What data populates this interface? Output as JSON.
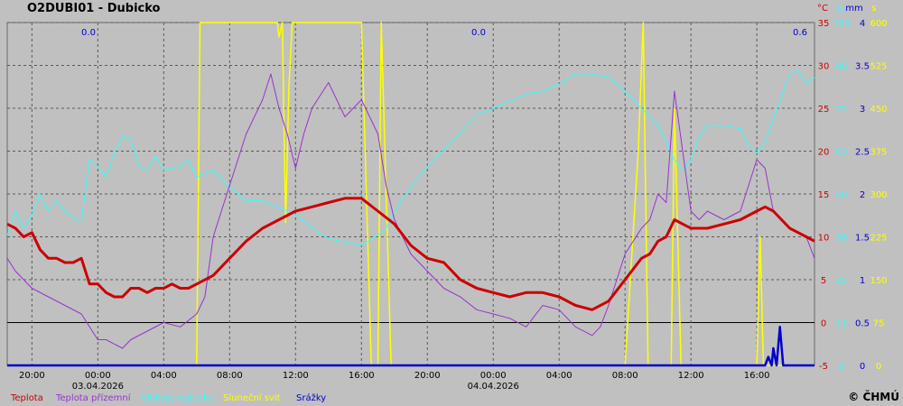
{
  "title": "O2DUBI01 - Dubicko",
  "copyright": "© ČHMÚ",
  "colors": {
    "background": "#c0c0c0",
    "grid": "#5a5a5a",
    "temperature": "#cc0000",
    "ground_temperature": "#9933cc",
    "humidity": "#33ffff",
    "sunshine": "#ffff00",
    "precipitation": "#0000cc",
    "zero_line": "#000000"
  },
  "chart_data": {
    "type": "line",
    "title": "O2DUBI01 - Dubicko",
    "x_ticks": [
      "20:00",
      "00:00",
      "04:00",
      "08:00",
      "12:00",
      "16:00",
      "20:00",
      "00:00",
      "04:00",
      "08:00",
      "12:00",
      "16:00"
    ],
    "date_labels": [
      {
        "at": "00:00",
        "text": "03.04.2026"
      },
      {
        "at": "00:00",
        "text": "04.04.2026"
      }
    ],
    "xlim_hours": [
      -5.5,
      43.5
    ],
    "grid": true,
    "axes": [
      {
        "unit": "°C",
        "color": "#cc0000",
        "ticks": [
          "35",
          "30",
          "25",
          "20",
          "15",
          "10",
          "5",
          "0",
          "-5"
        ]
      },
      {
        "unit": "%",
        "color": "#33ffff",
        "ticks": [
          "100",
          "88",
          "75",
          "63",
          "50",
          "38",
          "25",
          "13",
          "0"
        ]
      },
      {
        "unit": "mm",
        "color": "#0000cc",
        "ticks": [
          "4",
          "3.5",
          "3",
          "2.5",
          "2",
          "1.5",
          "1",
          "0.5",
          "0"
        ]
      },
      {
        "unit": "s",
        "color": "#ffff00",
        "ticks": [
          "600",
          "525",
          "450",
          "375",
          "300",
          "225",
          "150",
          "75",
          "0"
        ]
      }
    ],
    "daily_precip_totals": [
      "0.0",
      "0.0",
      "0.6"
    ],
    "legend": [
      "Teplota",
      "Teplota přízemní",
      "Vlhkost vzduchu",
      "Sluneční svit",
      "Srážky"
    ],
    "legend_position": "bottom",
    "series": [
      {
        "name": "Teplota",
        "color": "#cc0000",
        "axis": "°C",
        "points": [
          [
            -5.5,
            11.5
          ],
          [
            -5,
            11
          ],
          [
            -4.5,
            10
          ],
          [
            -4,
            10.5
          ],
          [
            -3.5,
            8.5
          ],
          [
            -3,
            7.5
          ],
          [
            -2.5,
            7.5
          ],
          [
            -2,
            7
          ],
          [
            -1.5,
            7
          ],
          [
            -1,
            7.5
          ],
          [
            -0.5,
            4.5
          ],
          [
            0,
            4.5
          ],
          [
            0.5,
            3.5
          ],
          [
            1,
            3
          ],
          [
            1.5,
            3
          ],
          [
            2,
            4
          ],
          [
            2.5,
            4
          ],
          [
            3,
            3.5
          ],
          [
            3.5,
            4
          ],
          [
            4,
            4
          ],
          [
            4.5,
            4.5
          ],
          [
            5,
            4
          ],
          [
            5.5,
            4
          ],
          [
            6,
            4.5
          ],
          [
            7,
            5.5
          ],
          [
            8,
            7.5
          ],
          [
            9,
            9.5
          ],
          [
            10,
            11
          ],
          [
            11,
            12
          ],
          [
            12,
            13
          ],
          [
            13,
            13.5
          ],
          [
            14,
            14
          ],
          [
            15,
            14.5
          ],
          [
            16,
            14.5
          ],
          [
            17,
            13
          ],
          [
            18,
            11.5
          ],
          [
            19,
            9
          ],
          [
            20,
            7.5
          ],
          [
            21,
            7
          ],
          [
            22,
            5
          ],
          [
            23,
            4
          ],
          [
            24,
            3.5
          ],
          [
            25,
            3
          ],
          [
            26,
            3.5
          ],
          [
            27,
            3.5
          ],
          [
            28,
            3
          ],
          [
            29,
            2
          ],
          [
            30,
            1.5
          ],
          [
            31,
            2.5
          ],
          [
            32,
            5
          ],
          [
            33,
            7.5
          ],
          [
            33.5,
            8
          ],
          [
            34,
            9.5
          ],
          [
            34.5,
            10
          ],
          [
            35,
            12
          ],
          [
            35.5,
            11.5
          ],
          [
            36,
            11
          ],
          [
            37,
            11
          ],
          [
            38,
            11.5
          ],
          [
            39,
            12
          ],
          [
            40,
            13
          ],
          [
            40.5,
            13.5
          ],
          [
            41,
            13
          ],
          [
            42,
            11
          ],
          [
            43,
            10
          ],
          [
            43.5,
            9.5
          ]
        ]
      },
      {
        "name": "Teplota přízemní",
        "color": "#9933cc",
        "axis": "°C",
        "points": [
          [
            -5.5,
            7.5
          ],
          [
            -5,
            6
          ],
          [
            -4,
            4
          ],
          [
            -3,
            3
          ],
          [
            -2,
            2
          ],
          [
            -1,
            1
          ],
          [
            0,
            -2
          ],
          [
            0.5,
            -2
          ],
          [
            1,
            -2.5
          ],
          [
            1.5,
            -3
          ],
          [
            2,
            -2
          ],
          [
            3,
            -1
          ],
          [
            4,
            0
          ],
          [
            5,
            -0.5
          ],
          [
            6,
            1
          ],
          [
            6.5,
            3
          ],
          [
            7,
            10
          ],
          [
            8,
            16
          ],
          [
            9,
            22
          ],
          [
            10,
            26
          ],
          [
            10.5,
            29
          ],
          [
            11,
            25
          ],
          [
            11.5,
            22
          ],
          [
            12,
            18
          ],
          [
            12.5,
            22
          ],
          [
            13,
            25
          ],
          [
            14,
            28
          ],
          [
            14.5,
            26
          ],
          [
            15,
            24
          ],
          [
            16,
            26
          ],
          [
            17,
            22
          ],
          [
            17.5,
            16
          ],
          [
            18,
            12
          ],
          [
            18.5,
            10
          ],
          [
            19,
            8
          ],
          [
            20,
            6
          ],
          [
            21,
            4
          ],
          [
            22,
            3
          ],
          [
            23,
            1.5
          ],
          [
            24,
            1
          ],
          [
            25,
            0.5
          ],
          [
            26,
            -0.5
          ],
          [
            27,
            2
          ],
          [
            28,
            1.5
          ],
          [
            29,
            -0.5
          ],
          [
            30,
            -1.5
          ],
          [
            30.5,
            -0.5
          ],
          [
            31,
            2
          ],
          [
            32,
            8
          ],
          [
            33,
            11
          ],
          [
            33.5,
            12
          ],
          [
            34,
            15
          ],
          [
            34.5,
            14
          ],
          [
            35,
            27
          ],
          [
            35.5,
            20
          ],
          [
            36,
            13
          ],
          [
            36.5,
            12
          ],
          [
            37,
            13
          ],
          [
            38,
            12
          ],
          [
            39,
            13
          ],
          [
            40,
            19
          ],
          [
            40.5,
            18
          ],
          [
            41,
            13
          ],
          [
            42,
            11
          ],
          [
            43,
            10
          ],
          [
            43.5,
            7.5
          ]
        ]
      },
      {
        "name": "Vlhkost vzduchu",
        "color": "#33ffff",
        "axis": "%",
        "points": [
          [
            -5.5,
            38
          ],
          [
            -5,
            45
          ],
          [
            -4.5,
            40
          ],
          [
            -4,
            44
          ],
          [
            -3.5,
            50
          ],
          [
            -3,
            45
          ],
          [
            -2.5,
            48
          ],
          [
            -2,
            45
          ],
          [
            -1.5,
            43
          ],
          [
            -1,
            42
          ],
          [
            -0.5,
            60
          ],
          [
            0,
            58
          ],
          [
            0.5,
            55
          ],
          [
            1,
            62
          ],
          [
            1.5,
            67
          ],
          [
            2,
            66
          ],
          [
            2.5,
            58
          ],
          [
            3,
            57
          ],
          [
            3.5,
            61
          ],
          [
            4,
            57
          ],
          [
            5,
            58
          ],
          [
            5.5,
            60
          ],
          [
            6,
            55
          ],
          [
            7,
            57
          ],
          [
            8,
            52
          ],
          [
            9,
            48
          ],
          [
            10,
            48
          ],
          [
            11,
            46
          ],
          [
            12,
            44
          ],
          [
            13,
            40
          ],
          [
            14,
            37
          ],
          [
            15,
            36
          ],
          [
            16,
            35
          ],
          [
            17,
            38
          ],
          [
            17.5,
            40
          ],
          [
            18,
            45
          ],
          [
            19,
            52
          ],
          [
            20,
            58
          ],
          [
            21,
            63
          ],
          [
            22,
            68
          ],
          [
            23,
            73
          ],
          [
            24,
            75
          ],
          [
            25,
            77
          ],
          [
            26,
            79
          ],
          [
            27,
            80
          ],
          [
            28,
            82
          ],
          [
            29,
            85
          ],
          [
            30,
            85
          ],
          [
            31,
            84
          ],
          [
            32,
            80
          ],
          [
            33,
            75
          ],
          [
            34,
            70
          ],
          [
            35,
            60
          ],
          [
            35.5,
            57
          ],
          [
            36,
            60
          ],
          [
            36.5,
            67
          ],
          [
            37,
            70
          ],
          [
            38,
            70
          ],
          [
            39,
            69
          ],
          [
            39.5,
            64
          ],
          [
            40,
            62
          ],
          [
            40.5,
            65
          ],
          [
            41,
            72
          ],
          [
            42,
            85
          ],
          [
            42.5,
            86
          ],
          [
            43,
            82
          ],
          [
            43.5,
            84
          ]
        ]
      },
      {
        "name": "Sluneční svit",
        "color": "#ffff00",
        "axis": "s",
        "points": [
          [
            -5.5,
            0
          ],
          [
            5.8,
            0
          ],
          [
            6,
            0
          ],
          [
            6.2,
            600
          ],
          [
            10.9,
            600
          ],
          [
            11,
            575
          ],
          [
            11.2,
            600
          ],
          [
            11.4,
            250
          ],
          [
            11.6,
            490
          ],
          [
            11.8,
            600
          ],
          [
            15.5,
            600
          ],
          [
            16,
            600
          ],
          [
            16.6,
            0
          ],
          [
            17,
            0
          ],
          [
            17.2,
            600
          ],
          [
            17.8,
            0
          ],
          [
            30.5,
            0
          ],
          [
            32,
            0
          ],
          [
            32.8,
            375
          ],
          [
            33.1,
            600
          ],
          [
            33.4,
            0
          ],
          [
            34.8,
            0
          ],
          [
            35,
            450
          ],
          [
            35.4,
            0
          ],
          [
            40,
            0
          ],
          [
            40.2,
            225
          ],
          [
            40.4,
            0
          ],
          [
            43.5,
            0
          ]
        ]
      },
      {
        "name": "Srážky",
        "color": "#0000cc",
        "axis": "mm",
        "points": [
          [
            -5.5,
            0
          ],
          [
            40.5,
            0
          ],
          [
            40.7,
            0.1
          ],
          [
            40.9,
            0
          ],
          [
            41,
            0.2
          ],
          [
            41.2,
            0
          ],
          [
            41.4,
            0.45
          ],
          [
            41.6,
            0
          ],
          [
            43.5,
            0
          ]
        ]
      }
    ]
  }
}
